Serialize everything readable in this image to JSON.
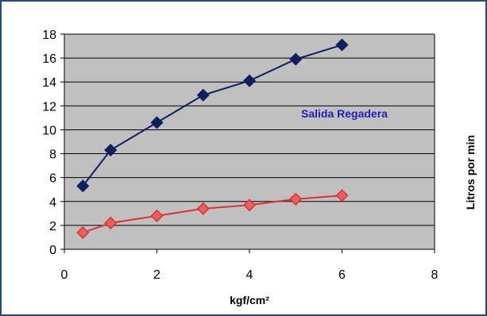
{
  "chart_data": {
    "type": "scatter",
    "title": "",
    "xlabel": "kgf/cm²",
    "ylabel": "Litros por min",
    "xlim": [
      0,
      8
    ],
    "ylim": [
      0,
      18
    ],
    "x_ticks": [
      "0",
      "2",
      "4",
      "6",
      "8"
    ],
    "y_ticks": [
      "0",
      "2",
      "4",
      "6",
      "8",
      "10",
      "12",
      "14",
      "16",
      "18"
    ],
    "grid": "horizontal",
    "plot_background": "#c0c0c0",
    "series": [
      {
        "name": "Salida Regadera",
        "color": "#0f2060",
        "marker": "diamond",
        "x": [
          0.4,
          1,
          2,
          3,
          4,
          5,
          6
        ],
        "y": [
          5.3,
          8.3,
          10.6,
          12.9,
          14.1,
          15.9,
          17.1
        ]
      },
      {
        "name": "",
        "color": "#e03030",
        "marker": "diamond",
        "x": [
          0.4,
          1,
          2,
          3,
          4,
          5,
          6
        ],
        "y": [
          1.4,
          2.2,
          2.8,
          3.4,
          3.7,
          4.2,
          4.5
        ]
      }
    ]
  }
}
